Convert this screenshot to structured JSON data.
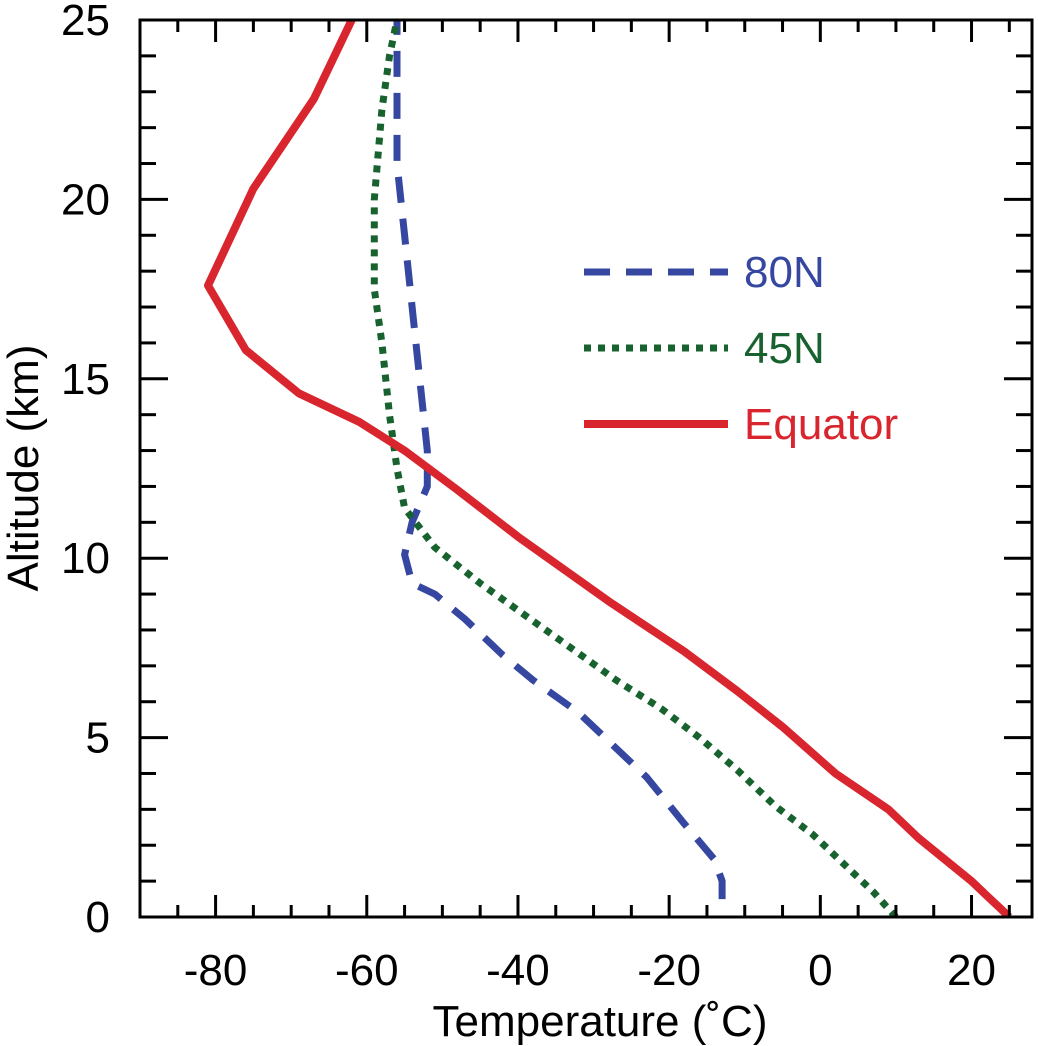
{
  "chart_data": {
    "type": "line",
    "xlabel": "Temperature (˚C)",
    "ylabel": "Altitude (km)",
    "xlim": [
      -90,
      28
    ],
    "ylim": [
      0,
      25
    ],
    "x_ticks": [
      -80,
      -60,
      -40,
      -20,
      0,
      20
    ],
    "x_tick_labels": [
      "-80",
      "-60",
      "-40",
      "-20",
      "0",
      "20"
    ],
    "y_ticks": [
      0,
      5,
      10,
      15,
      20,
      25
    ],
    "y_tick_labels": [
      "0",
      "5",
      "10",
      "15",
      "20",
      "25"
    ],
    "minor_tick_step_x": 5,
    "minor_tick_step_y": 1,
    "grid": false,
    "legend_position": "center-right",
    "series": [
      {
        "name": "80N",
        "color": "#3547a0",
        "style": "dashed",
        "points": [
          [
            -13,
            0.5
          ],
          [
            -13,
            1
          ],
          [
            -14,
            1.6
          ],
          [
            -18,
            2.6
          ],
          [
            -23,
            3.9
          ],
          [
            -28,
            4.9
          ],
          [
            -32,
            5.7
          ],
          [
            -38,
            6.6
          ],
          [
            -42,
            7.3
          ],
          [
            -47,
            8.3
          ],
          [
            -51,
            9
          ],
          [
            -54,
            9.3
          ],
          [
            -55,
            10.1
          ],
          [
            -54,
            11
          ],
          [
            -52,
            12
          ],
          [
            -52,
            13
          ],
          [
            -53,
            15
          ],
          [
            -54,
            17
          ],
          [
            -55,
            19
          ],
          [
            -56,
            21
          ],
          [
            -56,
            23
          ],
          [
            -56,
            25
          ]
        ]
      },
      {
        "name": "45N",
        "color": "#17622e",
        "style": "dotted",
        "points": [
          [
            10,
            0
          ],
          [
            7,
            0.7
          ],
          [
            3,
            1.5
          ],
          [
            -1,
            2.3
          ],
          [
            -6,
            3.1
          ],
          [
            -11,
            4.1
          ],
          [
            -16,
            5
          ],
          [
            -21,
            5.8
          ],
          [
            -27,
            6.6
          ],
          [
            -33,
            7.5
          ],
          [
            -39,
            8.4
          ],
          [
            -45,
            9.3
          ],
          [
            -51,
            10.3
          ],
          [
            -55,
            11.4
          ],
          [
            -56,
            12.5
          ],
          [
            -57,
            14
          ],
          [
            -58,
            16
          ],
          [
            -59,
            17.5
          ],
          [
            -59,
            20
          ],
          [
            -58,
            22.5
          ],
          [
            -57,
            24
          ],
          [
            -56,
            25
          ]
        ]
      },
      {
        "name": "Equator",
        "color": "#d9262e",
        "style": "solid",
        "points": [
          [
            25,
            0
          ],
          [
            24,
            0.2
          ],
          [
            22,
            0.6
          ],
          [
            20,
            1
          ],
          [
            13,
            2.2
          ],
          [
            9,
            3
          ],
          [
            2,
            4
          ],
          [
            -5,
            5.3
          ],
          [
            -11,
            6.3
          ],
          [
            -18,
            7.4
          ],
          [
            -28,
            8.8
          ],
          [
            -40,
            10.6
          ],
          [
            -48,
            11.9
          ],
          [
            -55,
            13
          ],
          [
            -61,
            13.8
          ],
          [
            -69,
            14.6
          ],
          [
            -76,
            15.8
          ],
          [
            -81,
            17.6
          ],
          [
            -75,
            20.3
          ],
          [
            -67,
            22.8
          ],
          [
            -62,
            25
          ]
        ]
      }
    ]
  }
}
